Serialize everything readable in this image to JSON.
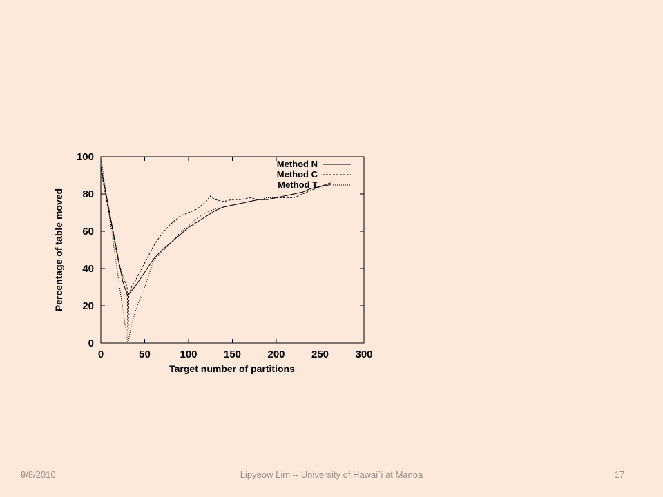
{
  "chart_data": {
    "type": "line",
    "xlabel": "Target number of partitions",
    "ylabel": "Percentage of table moved",
    "xlim": [
      0,
      300
    ],
    "ylim": [
      0,
      100
    ],
    "xticks": [
      "0",
      "50",
      "100",
      "150",
      "200",
      "250",
      "300"
    ],
    "yticks": [
      "0",
      "20",
      "40",
      "60",
      "80",
      "100"
    ],
    "grid": false,
    "legend_position": "top-right",
    "series": [
      {
        "name": "Method N",
        "style": "solid",
        "x": [
          0,
          10,
          20,
          25,
          30,
          31,
          35,
          40,
          50,
          60,
          70,
          80,
          90,
          100,
          110,
          120,
          130,
          140,
          150,
          160,
          170,
          180,
          190,
          200,
          210,
          220,
          230,
          240,
          250,
          262
        ],
        "y": [
          95,
          70,
          45,
          33,
          26,
          26,
          28,
          31,
          38,
          45,
          50,
          54,
          58,
          62,
          65,
          68,
          71,
          73,
          74,
          75,
          76,
          77,
          77,
          78,
          79,
          80,
          81,
          83,
          84,
          85
        ]
      },
      {
        "name": "Method C",
        "style": "dashed",
        "x": [
          0,
          10,
          20,
          25,
          30,
          31,
          32,
          35,
          40,
          50,
          60,
          70,
          80,
          90,
          100,
          110,
          120,
          125,
          130,
          140,
          150,
          160,
          170,
          180,
          190,
          200,
          210,
          220,
          230,
          240,
          250,
          262
        ],
        "y": [
          93,
          68,
          44,
          36,
          30,
          2,
          26,
          30,
          34,
          43,
          52,
          59,
          64,
          68,
          70,
          72,
          76,
          79,
          77,
          76,
          77,
          77,
          78,
          77,
          77,
          78,
          78,
          78,
          80,
          82,
          84,
          86
        ]
      },
      {
        "name": "Method T",
        "style": "dotted",
        "x": [
          0,
          30,
          31,
          35,
          40,
          50,
          60,
          70,
          80,
          90,
          100,
          110,
          120,
          130,
          140,
          150,
          160,
          170,
          180,
          190,
          200,
          210,
          220,
          230,
          240,
          250,
          262
        ],
        "y": [
          100,
          2,
          0,
          10,
          18,
          30,
          44,
          49,
          54,
          59,
          63,
          67,
          70,
          72,
          73,
          74,
          75,
          76,
          77,
          78,
          78,
          79,
          80,
          81,
          82,
          84,
          86
        ]
      }
    ]
  },
  "footer": {
    "date": "9/8/2010",
    "text": "Lipyeow Lim -- University of Hawai`i at Manoa",
    "page": "17"
  }
}
